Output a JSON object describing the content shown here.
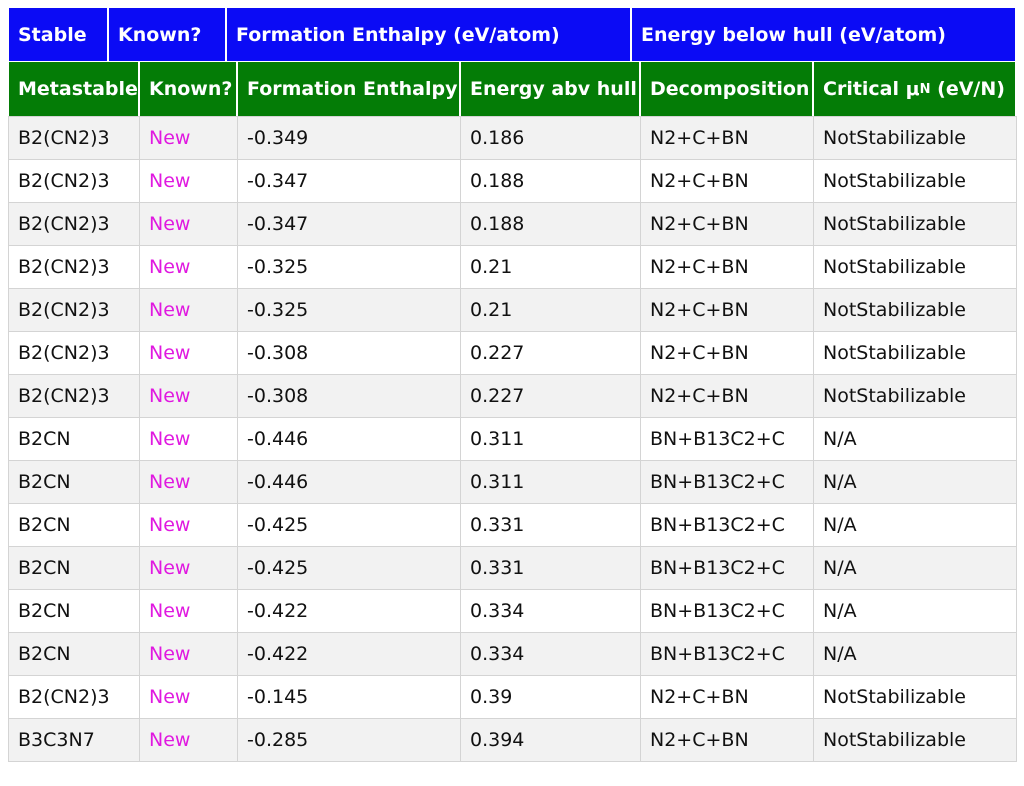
{
  "header_top": [
    "Stable",
    "Known?",
    "Formation Enthalpy (eV/atom)",
    "Energy below hull (eV/atom)"
  ],
  "header_bottom": {
    "metastable": "Metastable",
    "known": "Known?",
    "formation": "Formation Enthalpy",
    "energy_abv": "Energy abv hull",
    "decomposition": "Decomposition",
    "critical_prefix": "Critical μ",
    "critical_sub": "N",
    "critical_suffix": " (eV/N)"
  },
  "rows": [
    [
      "B2(CN2)3",
      "New",
      "-0.349",
      "0.186",
      "N2+C+BN",
      "NotStabilizable"
    ],
    [
      "B2(CN2)3",
      "New",
      "-0.347",
      "0.188",
      "N2+C+BN",
      "NotStabilizable"
    ],
    [
      "B2(CN2)3",
      "New",
      "-0.347",
      "0.188",
      "N2+C+BN",
      "NotStabilizable"
    ],
    [
      "B2(CN2)3",
      "New",
      "-0.325",
      "0.21",
      "N2+C+BN",
      "NotStabilizable"
    ],
    [
      "B2(CN2)3",
      "New",
      "-0.325",
      "0.21",
      "N2+C+BN",
      "NotStabilizable"
    ],
    [
      "B2(CN2)3",
      "New",
      "-0.308",
      "0.227",
      "N2+C+BN",
      "NotStabilizable"
    ],
    [
      "B2(CN2)3",
      "New",
      "-0.308",
      "0.227",
      "N2+C+BN",
      "NotStabilizable"
    ],
    [
      "B2CN",
      "New",
      "-0.446",
      "0.311",
      "BN+B13C2+C",
      "N/A"
    ],
    [
      "B2CN",
      "New",
      "-0.446",
      "0.311",
      "BN+B13C2+C",
      "N/A"
    ],
    [
      "B2CN",
      "New",
      "-0.425",
      "0.331",
      "BN+B13C2+C",
      "N/A"
    ],
    [
      "B2CN",
      "New",
      "-0.425",
      "0.331",
      "BN+B13C2+C",
      "N/A"
    ],
    [
      "B2CN",
      "New",
      "-0.422",
      "0.334",
      "BN+B13C2+C",
      "N/A"
    ],
    [
      "B2CN",
      "New",
      "-0.422",
      "0.334",
      "BN+B13C2+C",
      "N/A"
    ],
    [
      "B2(CN2)3",
      "New",
      "-0.145",
      "0.39",
      "N2+C+BN",
      "NotStabilizable"
    ],
    [
      "B3C3N7",
      "New",
      "-0.285",
      "0.394",
      "N2+C+BN",
      "NotStabilizable"
    ]
  ],
  "colors": {
    "header_top_bg": "#0b0bf5",
    "header_bottom_bg": "#047c06",
    "known_text": "#e019e0"
  }
}
